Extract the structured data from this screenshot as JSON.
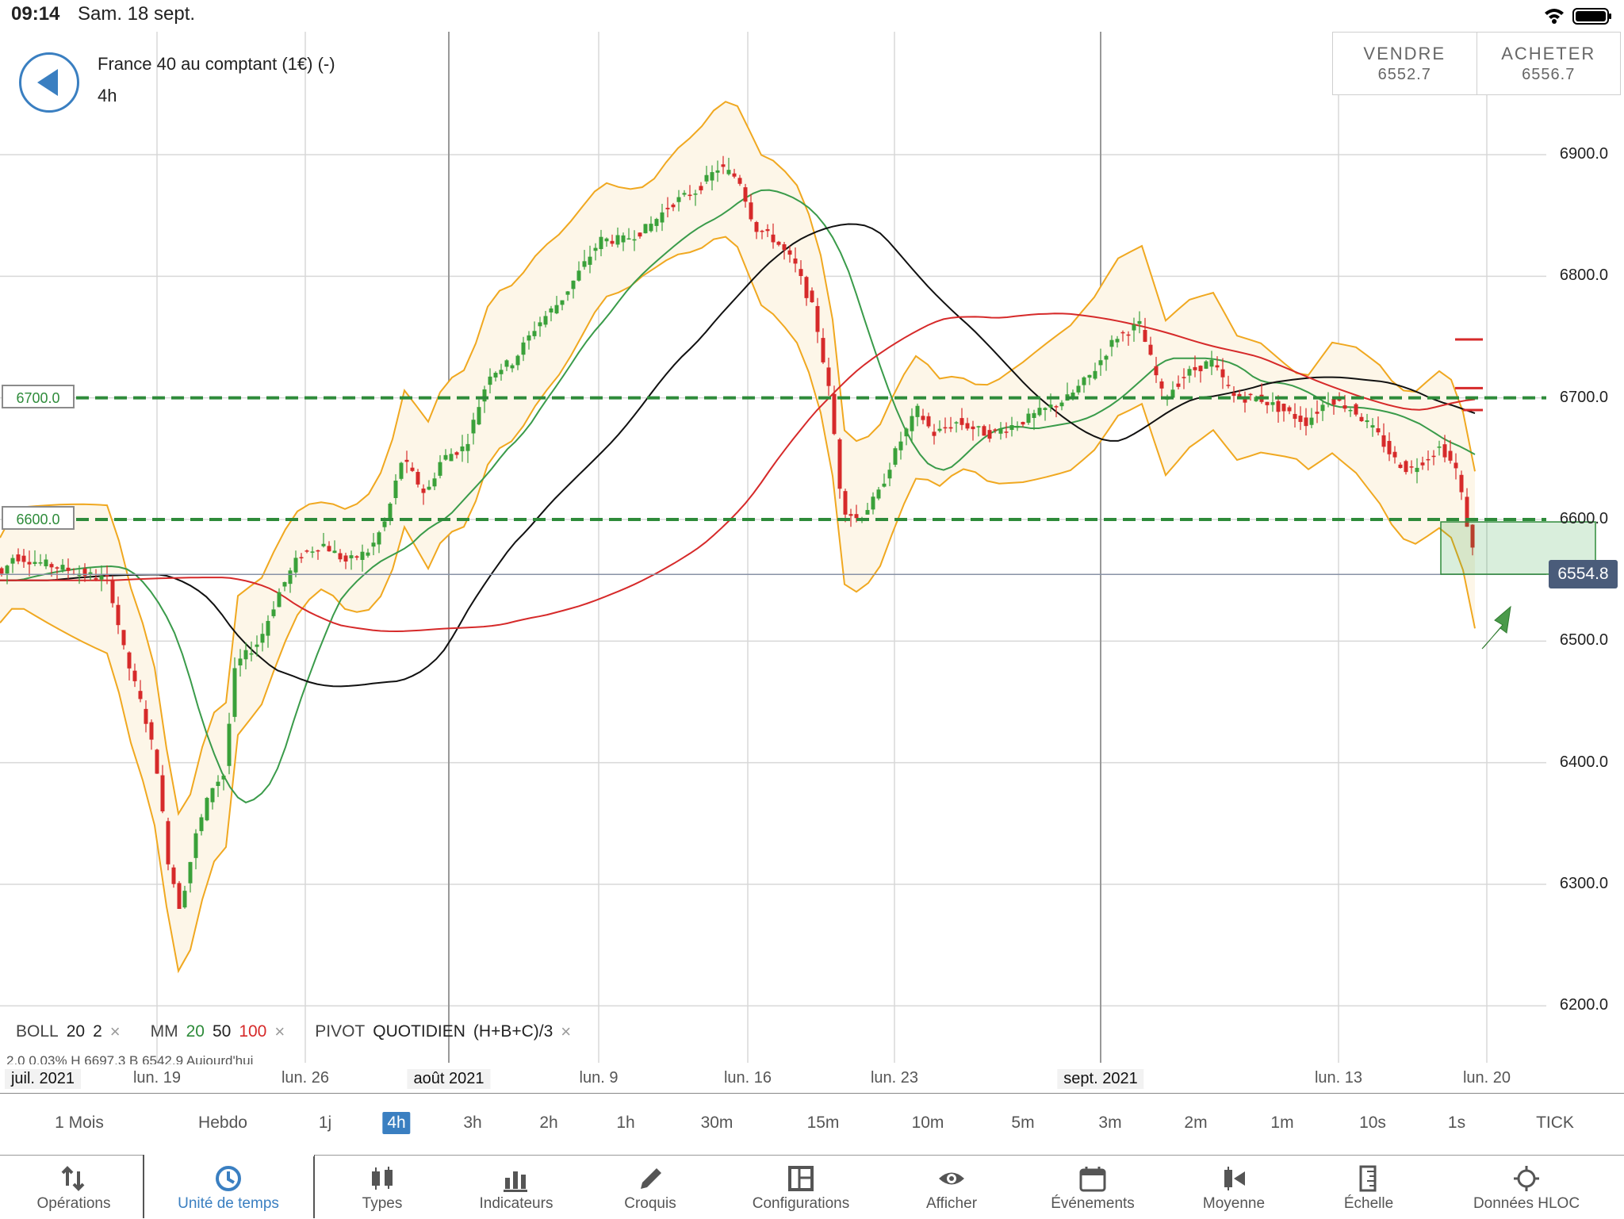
{
  "status": {
    "time": "09:14",
    "date": "Sam. 18 sept."
  },
  "instrument": {
    "name": "France 40 au comptant (1€) (-)",
    "timeframe": "4h"
  },
  "trade": {
    "sell_label": "VENDRE",
    "sell_price": "6552.7",
    "buy_label": "ACHETER",
    "buy_price": "6556.7"
  },
  "chart": {
    "y_labels": [
      "6900.0",
      "6800.0",
      "6700.0",
      "6600.0",
      "6500.0",
      "6400.0",
      "6300.0",
      "6200.0"
    ],
    "levels": [
      {
        "label": "6700.0",
        "value": 6700
      },
      {
        "label": "6600.0",
        "value": 6600
      }
    ],
    "current_price": "6554.8",
    "x_labels": [
      {
        "text": "juil. 2021",
        "month": true
      },
      {
        "text": "lun. 19",
        "month": false
      },
      {
        "text": "lun. 26",
        "month": false
      },
      {
        "text": "août 2021",
        "month": true
      },
      {
        "text": "lun. 9",
        "month": false
      },
      {
        "text": "lun. 16",
        "month": false
      },
      {
        "text": "lun. 23",
        "month": false
      },
      {
        "text": "sept. 2021",
        "month": true
      },
      {
        "text": "lun. 13",
        "month": false
      },
      {
        "text": "lun. 20",
        "month": false
      }
    ],
    "colors": {
      "up": "#3aa13a",
      "down": "#d62a2a",
      "boll": "#f0a820",
      "ma20": "#3a9b4a",
      "ma50": "#111111",
      "ma100": "#d62a2a",
      "level": "#2e8b3a"
    }
  },
  "legend": {
    "boll": "BOLL",
    "boll_period": "20",
    "boll_dev": "2",
    "ma": "MM",
    "ma1": "20",
    "ma2": "50",
    "ma3": "100",
    "pivot": "PIVOT",
    "pivot_mode": "QUOTIDIEN",
    "pivot_formula": "(H+B+C)/3",
    "close": "×",
    "sub": "2.0     0.03%     H 6697.3     B 6542.9     Aujourd'hui"
  },
  "timeframes": [
    "1 Mois",
    "Hebdo",
    "1j",
    "4h",
    "3h",
    "2h",
    "1h",
    "30m",
    "15m",
    "10m",
    "5m",
    "3m",
    "2m",
    "1m",
    "10s",
    "1s",
    "TICK"
  ],
  "active_timeframe": "4h",
  "toolbar": [
    {
      "label": "Opérations",
      "icon": "arrows-icon"
    },
    {
      "label": "Unité de temps",
      "icon": "clock-icon"
    },
    {
      "label": "Types",
      "icon": "candles-icon"
    },
    {
      "label": "Indicateurs",
      "icon": "bars-icon"
    },
    {
      "label": "Croquis",
      "icon": "pencil-icon"
    },
    {
      "label": "Configurations",
      "icon": "layout-icon"
    },
    {
      "label": "Afficher",
      "icon": "eye-icon"
    },
    {
      "label": "Événements",
      "icon": "calendar-icon"
    },
    {
      "label": "Moyenne",
      "icon": "average-icon"
    },
    {
      "label": "Échelle",
      "icon": "scale-icon"
    },
    {
      "label": "Données HLOC",
      "icon": "crosshair-icon"
    }
  ]
}
